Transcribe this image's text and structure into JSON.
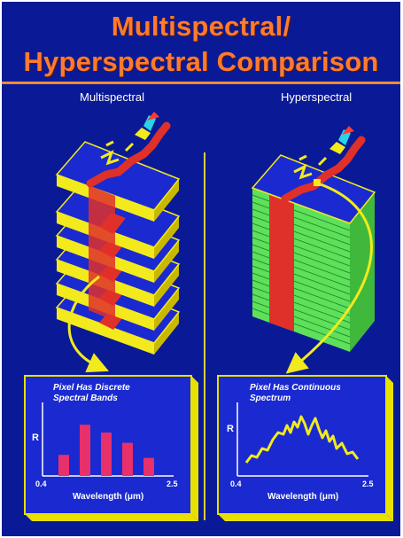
{
  "title": {
    "line1": "Multispectral/",
    "line2": "Hyperspectral Comparison"
  },
  "columns": {
    "left_label": "Multispectral",
    "right_label": "Hyperspectral"
  },
  "left_panel": {
    "caption_line1": "Pixel Has Discrete",
    "caption_line2": "Spectral Bands",
    "y_axis": "R",
    "x_min": "0.4",
    "x_max": "2.5",
    "x_label": "Wavelength (μm)",
    "bar_levels": [
      0.35,
      0.85,
      0.72,
      0.55,
      0.3
    ]
  },
  "right_panel": {
    "caption_line1": "Pixel Has Continuous",
    "caption_line2": "Spectrum",
    "y_axis": "R",
    "x_min": "0.4",
    "x_max": "2.5",
    "x_label": "Wavelength (μm)"
  },
  "colors": {
    "background": "#0a1a96",
    "title": "#ff7a2e",
    "yellow": "#f2ea1c",
    "green": "#5fe05a",
    "red": "#e0302a",
    "bar": "#e8306a"
  }
}
